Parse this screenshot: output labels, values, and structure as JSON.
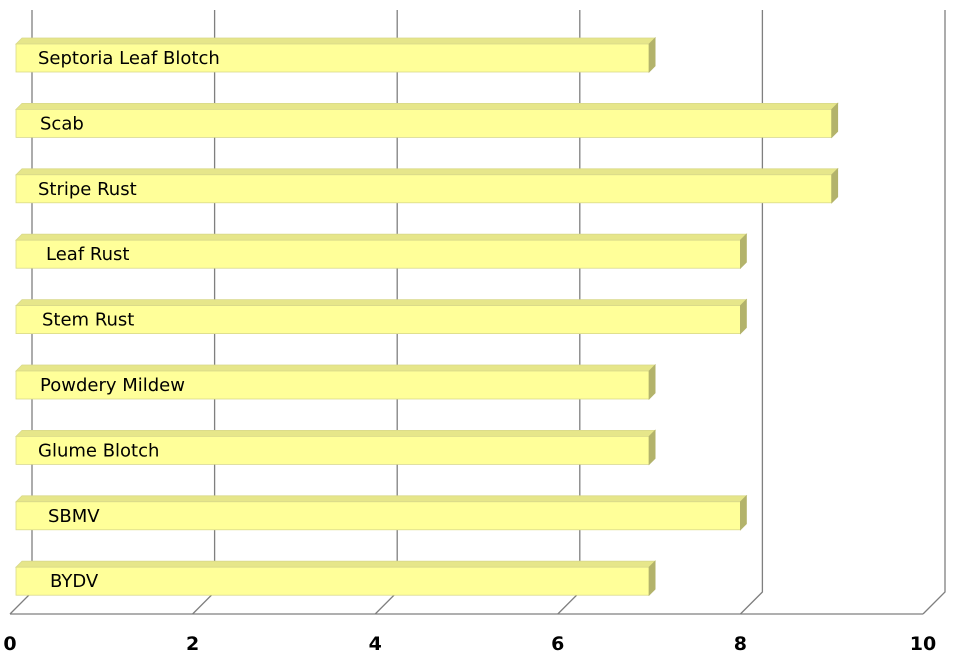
{
  "chart_data": {
    "type": "bar",
    "orientation": "horizontal",
    "style": "3d",
    "title": "",
    "xlabel": "",
    "ylabel": "",
    "xlim": [
      0,
      10
    ],
    "x_ticks": [
      0,
      2,
      4,
      6,
      8,
      10
    ],
    "grid": true,
    "legend": "none",
    "categories": [
      "Septoria Leaf Blotch",
      "Scab",
      "Stripe Rust",
      "Leaf Rust",
      "Stem Rust",
      "Powdery Mildew",
      "Glume Blotch",
      "SBMV",
      "BYDV"
    ],
    "values": [
      7,
      9,
      9,
      8,
      8,
      7,
      7,
      8,
      7
    ],
    "colors": {
      "bar_front": "#ffff99",
      "bar_top": "#e6e68a",
      "bar_side": "#b3b36b",
      "bar_edge": "#d9d98a",
      "grid": "#7f7f7f",
      "axis": "#7f7f7f"
    }
  }
}
